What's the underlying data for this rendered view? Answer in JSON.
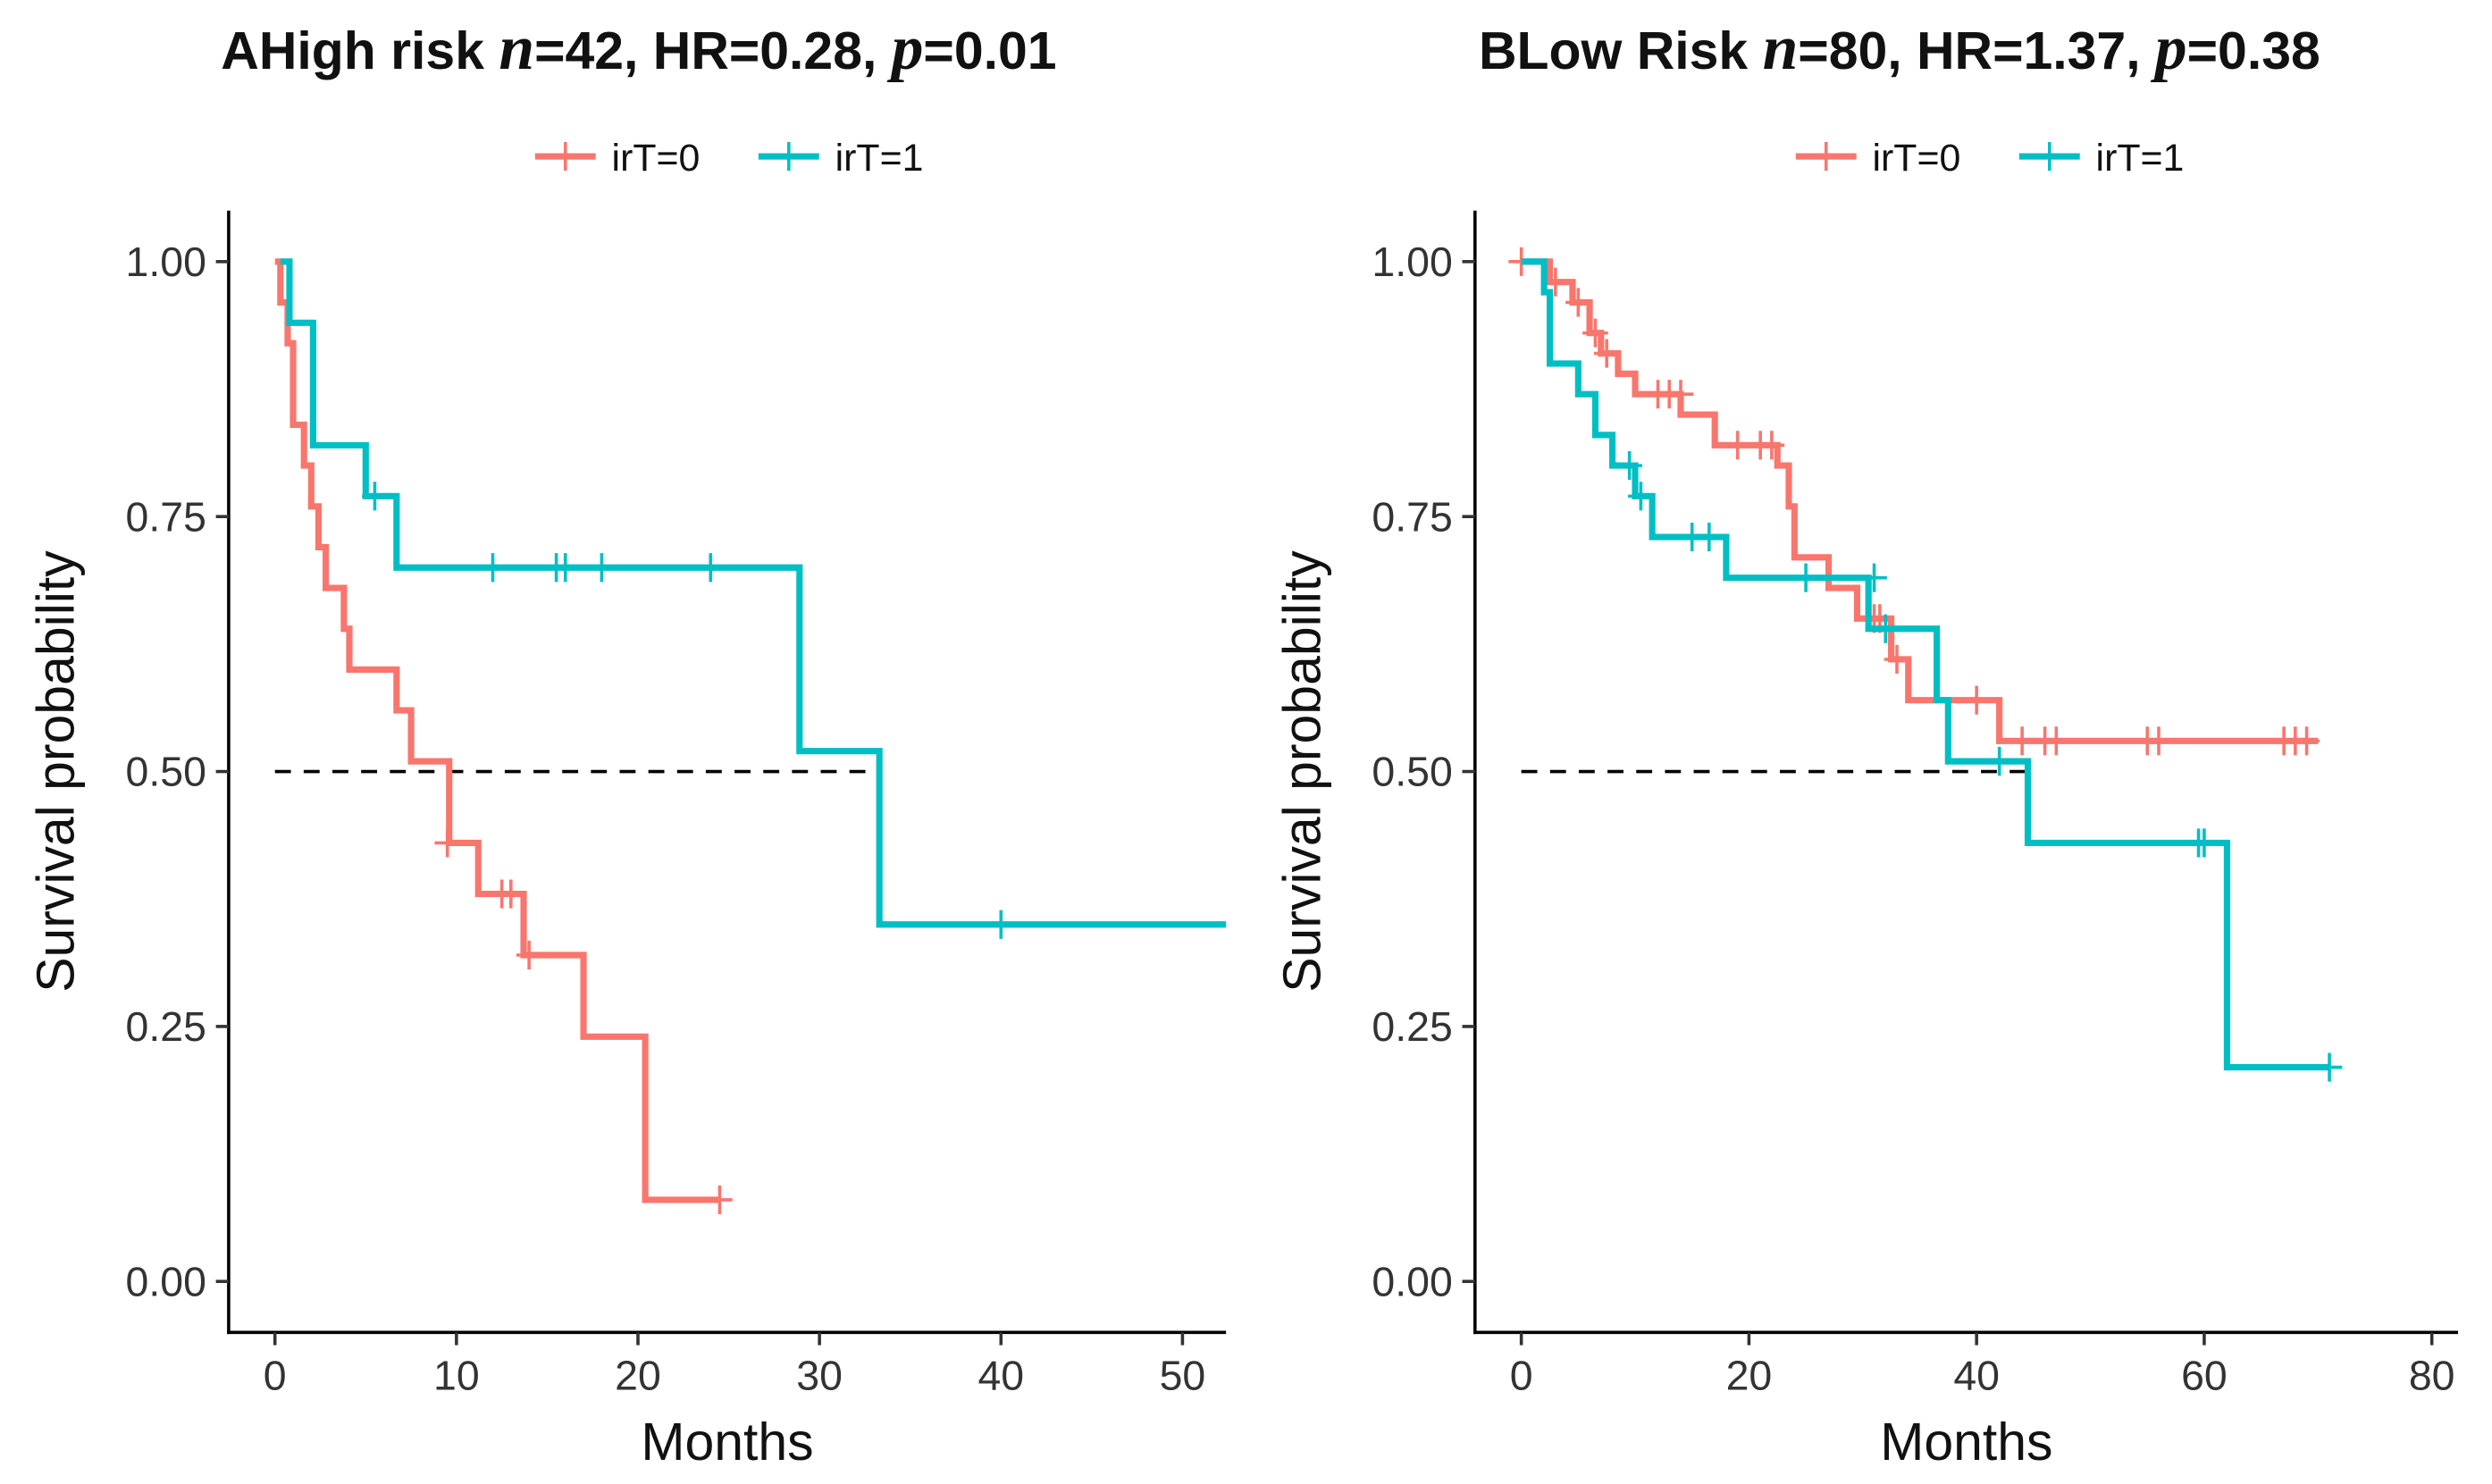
{
  "chart_data": [
    {
      "type": "survival",
      "panel_label": "A",
      "title": [
        "High risk ",
        "n",
        "=42, HR=0.28, ",
        "p",
        "=0.01"
      ],
      "x_label": "Months",
      "y_label": "Survival probability",
      "xlim": [
        -2.55,
        52.4
      ],
      "xticks": [
        0,
        10,
        20,
        30,
        40,
        50
      ],
      "ylim": [
        -0.05,
        1.05
      ],
      "yticks": [
        {
          "value": 0,
          "label": "0.00"
        },
        {
          "value": 0.25,
          "label": "0.25"
        },
        {
          "value": 0.5,
          "label": "0.50"
        },
        {
          "value": 0.75,
          "label": "0.75"
        },
        {
          "value": 1,
          "label": "1.00"
        }
      ],
      "median_y": 0.5,
      "median_x_end": 33.3,
      "series": [
        {
          "name": "irT=0",
          "color": "#f8766d",
          "x": [
            0,
            0.3,
            0.7,
            1.0,
            1.6,
            2.0,
            2.4,
            2.8,
            3.8,
            4.1,
            6.7,
            7.5,
            9.6,
            11.2,
            13.7,
            17.0,
            20.4,
            24.5
          ],
          "values": [
            1.0,
            0.96,
            0.92,
            0.84,
            0.8,
            0.76,
            0.72,
            0.68,
            0.64,
            0.6,
            0.56,
            0.51,
            0.43,
            0.38,
            0.32,
            0.24,
            0.08,
            0.08
          ],
          "censor_x": [
            9.5,
            12.5,
            13.0,
            14.0,
            24.5
          ],
          "censor_values": [
            0.43,
            0.38,
            0.38,
            0.32,
            0.08
          ]
        },
        {
          "name": "irT=1",
          "color": "#00bfc4",
          "x": [
            0.3,
            0.8,
            2.1,
            5.0,
            6.7,
            28.9,
            33.3,
            52.4
          ],
          "values": [
            1.0,
            0.94,
            0.82,
            0.77,
            0.7,
            0.52,
            0.35,
            0.35
          ],
          "censor_x": [
            5.5,
            12.0,
            15.5,
            16.0,
            18.0,
            24.0,
            40.0
          ],
          "censor_values": [
            0.77,
            0.7,
            0.7,
            0.7,
            0.7,
            0.7,
            0.35
          ]
        }
      ]
    },
    {
      "type": "survival",
      "panel_label": "B",
      "title": [
        "Low Risk ",
        "n",
        "=80, HR=1.37, ",
        "p",
        "=0.38"
      ],
      "x_label": "Months",
      "y_label": "Survival probability",
      "xlim": [
        -4.07,
        82.3
      ],
      "xticks": [
        0,
        20,
        40,
        60,
        80
      ],
      "ylim": [
        -0.05,
        1.05
      ],
      "yticks": [
        {
          "value": 0,
          "label": "0.00"
        },
        {
          "value": 0.25,
          "label": "0.25"
        },
        {
          "value": 0.5,
          "label": "0.50"
        },
        {
          "value": 0.75,
          "label": "0.75"
        },
        {
          "value": 1,
          "label": "1.00"
        }
      ],
      "median_y": 0.5,
      "median_x_end": 44.5,
      "series": [
        {
          "name": "irT=0",
          "color": "#f8766d",
          "x": [
            0,
            2.5,
            4.5,
            6,
            7,
            8.5,
            10,
            14,
            17,
            22.5,
            23.5,
            24,
            27,
            29.5,
            32.5,
            34,
            42,
            70
          ],
          "values": [
            1.0,
            0.98,
            0.96,
            0.93,
            0.91,
            0.89,
            0.87,
            0.85,
            0.82,
            0.8,
            0.76,
            0.71,
            0.68,
            0.65,
            0.61,
            0.57,
            0.53,
            0.53
          ],
          "censor_x": [
            0,
            3,
            5,
            6.5,
            7.5,
            12,
            13,
            14,
            19,
            21,
            22,
            31,
            31.5,
            33,
            40,
            44,
            46,
            47,
            55,
            56,
            67,
            68,
            69
          ],
          "censor_values": [
            1.0,
            0.98,
            0.96,
            0.93,
            0.91,
            0.87,
            0.87,
            0.87,
            0.82,
            0.82,
            0.82,
            0.65,
            0.65,
            0.61,
            0.57,
            0.53,
            0.53,
            0.53,
            0.53,
            0.53,
            0.53,
            0.53,
            0.53
          ]
        },
        {
          "name": "irT=1",
          "color": "#00bfc4",
          "x": [
            0,
            2,
            2.5,
            5,
            6.5,
            8,
            10,
            11.5,
            18,
            30.5,
            36.5,
            37.5,
            44.5,
            62,
            71
          ],
          "values": [
            1.0,
            0.97,
            0.9,
            0.87,
            0.83,
            0.8,
            0.77,
            0.73,
            0.69,
            0.64,
            0.57,
            0.51,
            0.43,
            0.21,
            0.21
          ],
          "censor_x": [
            9.5,
            10.5,
            15,
            16.5,
            25,
            31,
            32,
            42,
            59.5,
            60,
            71
          ],
          "censor_values": [
            0.8,
            0.77,
            0.73,
            0.73,
            0.69,
            0.69,
            0.64,
            0.51,
            0.43,
            0.43,
            0.21
          ]
        }
      ]
    }
  ]
}
